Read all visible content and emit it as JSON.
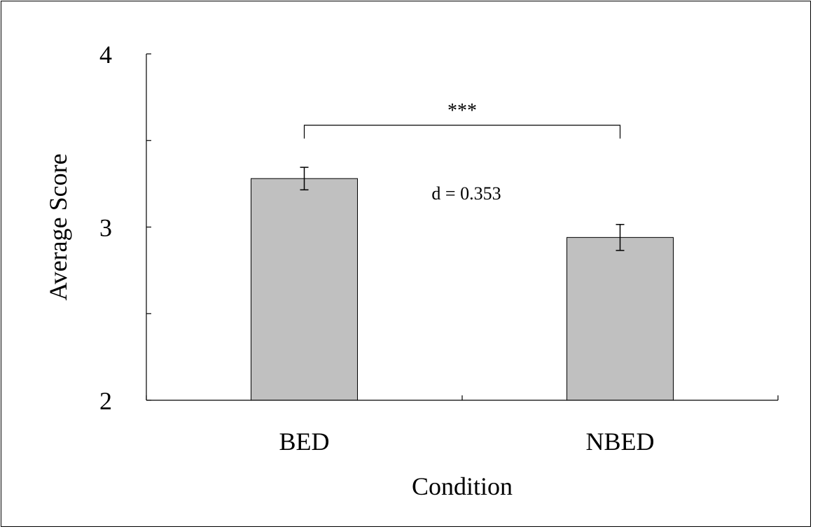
{
  "chart_data": {
    "type": "bar",
    "categories": [
      "BED",
      "NBED"
    ],
    "values": [
      3.28,
      2.94
    ],
    "errors": [
      0.065,
      0.075
    ],
    "title": "",
    "xlabel": "Condition",
    "ylabel": "Average Score",
    "ylim": [
      2,
      4
    ],
    "yticks_labeled": [
      2,
      3,
      4
    ],
    "yticks_minor": [
      2.5,
      3.5
    ],
    "yticks_labels": [
      "2",
      "3",
      "4"
    ],
    "grid": false,
    "legend": "none",
    "bar_color": "#c0c0c0",
    "annotations": {
      "significance": "***",
      "effect_size": "d = 0.353"
    }
  }
}
